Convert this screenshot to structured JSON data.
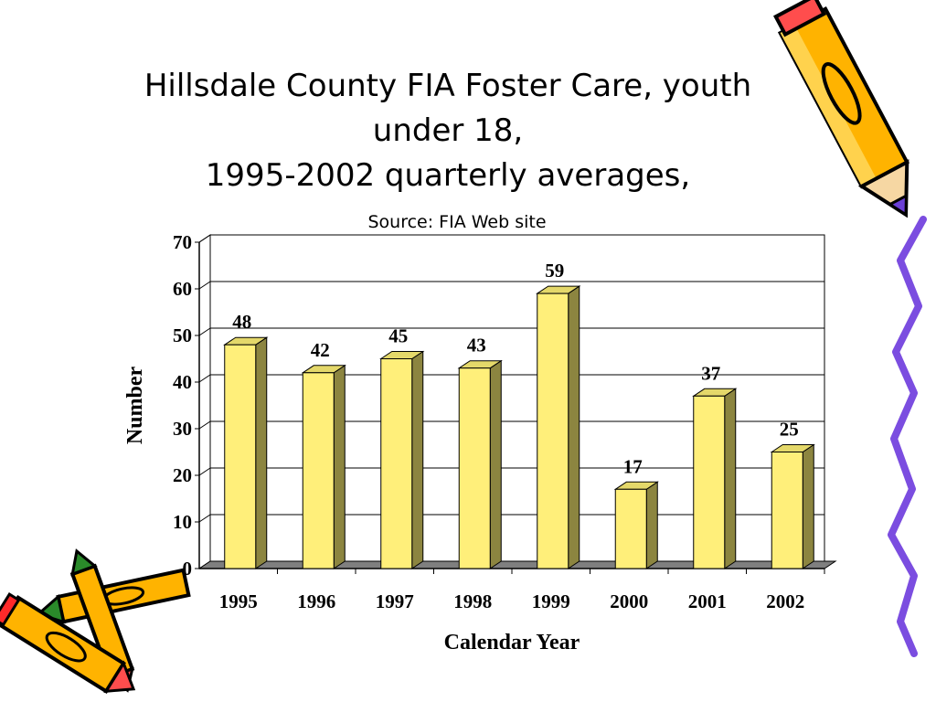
{
  "slide": {
    "title_line1": "Hillsdale County FIA Foster Care, youth",
    "title_line2": "under 18,",
    "title_line3": "1995-2002 quarterly averages,",
    "source": "Source: FIA Web site"
  },
  "decor": {
    "pencil_right_icon": "pencil-icon",
    "crayons_icon": "crayons-icon",
    "squiggle_icon": "squiggle-line-icon",
    "accent_purple": "#6b3fd6",
    "accent_orange": "#ff9900"
  },
  "chart_data": {
    "type": "bar",
    "categories": [
      "1995",
      "1996",
      "1997",
      "1998",
      "1999",
      "2000",
      "2001",
      "2002"
    ],
    "values": [
      48,
      42,
      45,
      43,
      59,
      17,
      37,
      25
    ],
    "data_labels": [
      "48",
      "42",
      "45",
      "43",
      "59",
      "17",
      "37",
      "25"
    ],
    "xlabel": "Calendar Year",
    "ylabel": "Number",
    "ylim": [
      0,
      70
    ],
    "yticks": [
      0,
      10,
      20,
      30,
      40,
      50,
      60,
      70
    ],
    "ytick_labels": [
      "0",
      "10",
      "20",
      "30",
      "40",
      "50",
      "60",
      "70"
    ],
    "grid": true,
    "style": "3d",
    "bar_color": "#ffef7a",
    "bar_side_color": "#8c8540",
    "floor_color": "#7f7f7f"
  }
}
